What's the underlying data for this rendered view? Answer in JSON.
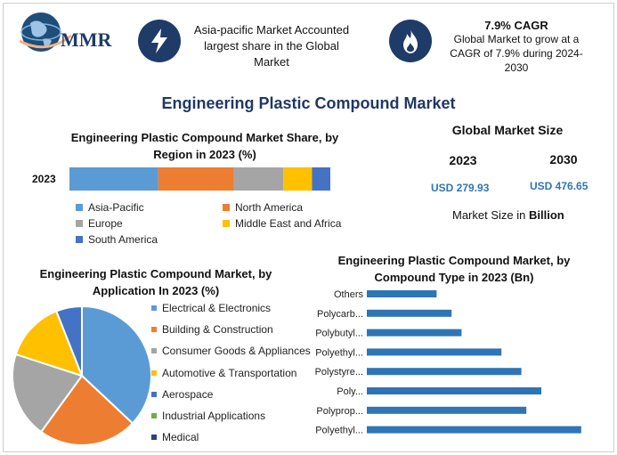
{
  "brand": {
    "logo_text": "MMR"
  },
  "header": {
    "card1_text": "Asia-pacific Market Accounted largest share in the Global Market",
    "card2_title": "7.9% CAGR",
    "card2_text": "Global Market to grow at a CAGR of 7.9% during 2024-2030",
    "card1_icon": "lightning-icon",
    "card2_icon": "flame-icon"
  },
  "main_title": "Engineering Plastic Compound Market",
  "market_size": {
    "title": "Global Market Size",
    "year1": "2023",
    "year2": "2030",
    "value1": "USD 279.93",
    "value2": "USD 476.65",
    "note_prefix": "Market Size in ",
    "note_unit": "Billion"
  },
  "colors": {
    "blue": "#5b9bd5",
    "orange": "#ed7d31",
    "gray": "#a5a5a5",
    "yellow": "#ffc000",
    "darkblue": "#4472c4",
    "green": "#70ad47",
    "navy": "#264478",
    "title": "#1f3864",
    "bar": "#2e75b6"
  },
  "chart_data": [
    {
      "type": "bar",
      "orientation": "horizontal-stacked",
      "title": "Engineering Plastic Compound Market Share, by Region in 2023 (%)",
      "categories": [
        "2023"
      ],
      "series": [
        {
          "name": "Asia-Pacific",
          "values": [
            34
          ],
          "color": "#5b9bd5"
        },
        {
          "name": "North America",
          "values": [
            29
          ],
          "color": "#ed7d31"
        },
        {
          "name": "Europe",
          "values": [
            19
          ],
          "color": "#a5a5a5"
        },
        {
          "name": "Middle East and Africa",
          "values": [
            11
          ],
          "color": "#ffc000"
        },
        {
          "name": "South America",
          "values": [
            7
          ],
          "color": "#4472c4"
        }
      ],
      "legend_position": "bottom"
    },
    {
      "type": "pie",
      "title": "Engineering Plastic Compound Market, by Application In 2023 (%)",
      "slices": [
        {
          "name": "Electrical & Electronics",
          "value": 37,
          "color": "#5b9bd5"
        },
        {
          "name": "Building & Construction",
          "value": 23,
          "color": "#ed7d31"
        },
        {
          "name": "Consumer Goods & Appliances",
          "value": 20,
          "color": "#a5a5a5"
        },
        {
          "name": "Automotive & Transportation",
          "value": 14,
          "color": "#ffc000"
        },
        {
          "name": "Aerospace",
          "value": 6,
          "color": "#4472c4"
        },
        {
          "name": "Industrial Applications",
          "value": 0,
          "color": "#70ad47"
        },
        {
          "name": "Medical",
          "value": 0,
          "color": "#264478"
        }
      ],
      "legend_position": "right"
    },
    {
      "type": "bar",
      "orientation": "horizontal",
      "title": "Engineering Plastic Compound Market, by Compound Type in 2023 (Bn)",
      "categories": [
        "Others",
        "Polycarb...",
        "Polybutyl...",
        "Polyethyl...",
        "Polystyre...",
        "Poly...",
        "Polyprop...",
        "Polyethyl..."
      ],
      "values": [
        14,
        17,
        19,
        27,
        31,
        35,
        32,
        43
      ],
      "xlim": [
        0,
        50
      ],
      "color": "#2e75b6"
    }
  ]
}
